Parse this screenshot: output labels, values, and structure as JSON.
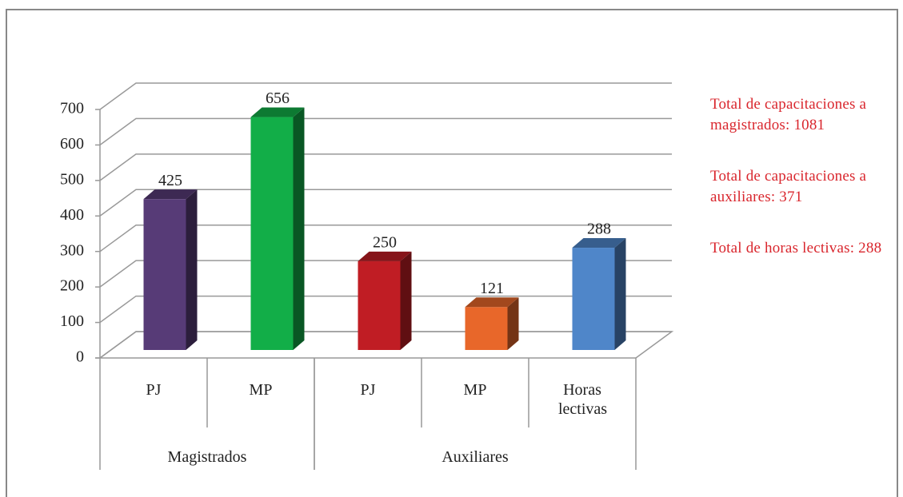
{
  "chart_data": {
    "type": "bar3d",
    "groups": [
      {
        "name": "Magistrados",
        "categories": [
          "PJ",
          "MP"
        ],
        "values": [
          425,
          656
        ],
        "colors": [
          "#573b77",
          "#12ae48"
        ]
      },
      {
        "name": "Auxiliares",
        "categories": [
          "PJ",
          "MP",
          "Horas lectivas"
        ],
        "values": [
          250,
          121,
          288
        ],
        "colors": [
          "#c01d24",
          "#e8672a",
          "#4f86c9"
        ]
      }
    ],
    "ylim": [
      0,
      700
    ],
    "yticks": [
      0,
      100,
      200,
      300,
      400,
      500,
      600,
      700
    ],
    "grid": true,
    "annotations": [
      {
        "text": "Total de capacitaciones a magistrados:",
        "value": 1081
      },
      {
        "text": "Total de capacitaciones a auxiliares:",
        "value": 371
      },
      {
        "text": "Total de horas lectivas:",
        "value": 288
      }
    ]
  }
}
